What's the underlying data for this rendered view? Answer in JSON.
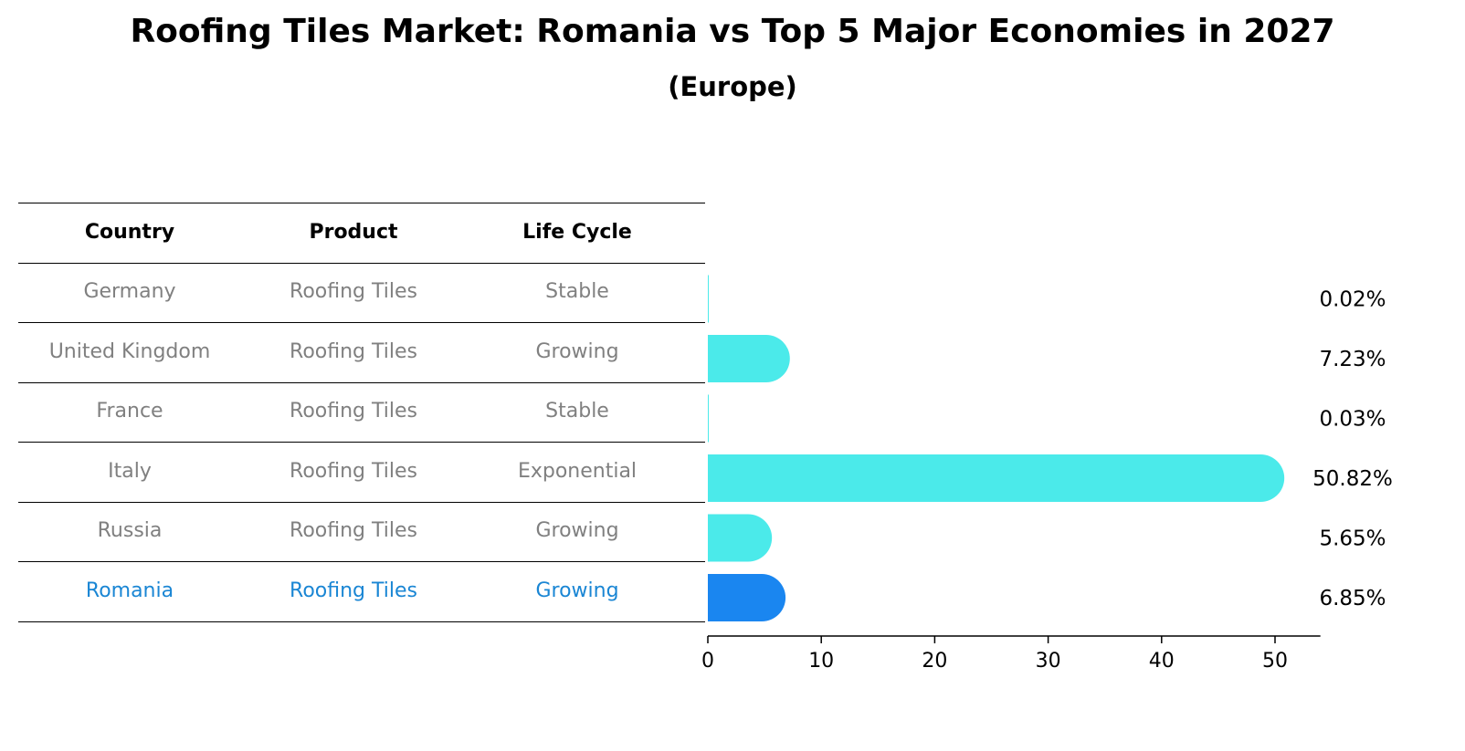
{
  "title": "Roofing Tiles Market: Romania vs Top 5 Major Economies in 2027",
  "subtitle": "(Europe)",
  "table": {
    "headers": [
      "Country",
      "Product",
      "Life Cycle"
    ],
    "rows": [
      [
        "Germany",
        "Roofing Tiles",
        "Stable"
      ],
      [
        "United Kingdom",
        "Roofing Tiles",
        "Growing"
      ],
      [
        "France",
        "Roofing Tiles",
        "Stable"
      ],
      [
        "Italy",
        "Roofing Tiles",
        "Exponential"
      ],
      [
        "Russia",
        "Roofing Tiles",
        "Growing"
      ],
      [
        "Romania",
        "Roofing Tiles",
        "Growing"
      ]
    ],
    "highlight_row": 5
  },
  "chart_data": {
    "type": "bar",
    "orientation": "horizontal",
    "categories": [
      "Germany",
      "United Kingdom",
      "France",
      "Italy",
      "Russia",
      "Romania"
    ],
    "values": [
      0.02,
      7.23,
      0.03,
      50.82,
      5.65,
      6.85
    ],
    "value_labels": [
      "0.02%",
      "7.23%",
      "0.03%",
      "50.82%",
      "5.65%",
      "6.85%"
    ],
    "xlim": [
      0,
      54
    ],
    "xticks": [
      0,
      10,
      20,
      30,
      40,
      50
    ],
    "bar_color": "#4beaea",
    "highlight_color": "#1a86f0",
    "highlight_index": 5,
    "grid": false
  },
  "colors": {
    "header_text": "#000000",
    "body_text": "#808080",
    "highlight_text": "#1a86d4"
  }
}
